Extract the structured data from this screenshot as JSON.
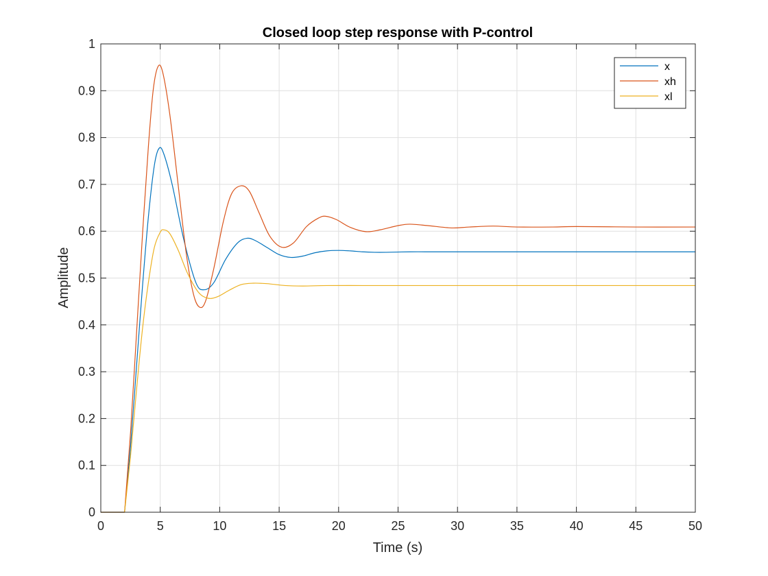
{
  "chart_data": {
    "type": "line",
    "title": "Closed loop step response with P-control",
    "xlabel": "Time (s)",
    "ylabel": "Amplitude",
    "xlim": [
      0,
      50
    ],
    "ylim": [
      0,
      1
    ],
    "xticks": [
      0,
      5,
      10,
      15,
      20,
      25,
      30,
      35,
      40,
      45,
      50
    ],
    "yticks": [
      0,
      0.1,
      0.2,
      0.3,
      0.4,
      0.5,
      0.6,
      0.7,
      0.8,
      0.9,
      1
    ],
    "grid": true,
    "legend_position": "top-right",
    "series": [
      {
        "name": "x",
        "color": "#0072BD",
        "points": [
          [
            0,
            0
          ],
          [
            2,
            0
          ],
          [
            2.5,
            0.14
          ],
          [
            3,
            0.31
          ],
          [
            3.5,
            0.48
          ],
          [
            4,
            0.63
          ],
          [
            4.5,
            0.74
          ],
          [
            4.9,
            0.777
          ],
          [
            5.3,
            0.765
          ],
          [
            6,
            0.7
          ],
          [
            7,
            0.58
          ],
          [
            8,
            0.49
          ],
          [
            8.7,
            0.475
          ],
          [
            9.5,
            0.49
          ],
          [
            10.5,
            0.54
          ],
          [
            11.5,
            0.575
          ],
          [
            12.3,
            0.585
          ],
          [
            13,
            0.58
          ],
          [
            14,
            0.565
          ],
          [
            15,
            0.55
          ],
          [
            16,
            0.544
          ],
          [
            17,
            0.547
          ],
          [
            18,
            0.554
          ],
          [
            19,
            0.558
          ],
          [
            20,
            0.559
          ],
          [
            21,
            0.558
          ],
          [
            22,
            0.556
          ],
          [
            23,
            0.555
          ],
          [
            24,
            0.555
          ],
          [
            26,
            0.556
          ],
          [
            28,
            0.556
          ],
          [
            30,
            0.556
          ],
          [
            35,
            0.556
          ],
          [
            40,
            0.556
          ],
          [
            45,
            0.556
          ],
          [
            50,
            0.556
          ]
        ]
      },
      {
        "name": "xh",
        "color": "#D95319",
        "points": [
          [
            0,
            0
          ],
          [
            2,
            0
          ],
          [
            2.5,
            0.17
          ],
          [
            3,
            0.38
          ],
          [
            3.5,
            0.59
          ],
          [
            4,
            0.78
          ],
          [
            4.4,
            0.9
          ],
          [
            4.8,
            0.951
          ],
          [
            5.2,
            0.94
          ],
          [
            5.8,
            0.85
          ],
          [
            6.5,
            0.7
          ],
          [
            7.2,
            0.55
          ],
          [
            7.8,
            0.465
          ],
          [
            8.3,
            0.438
          ],
          [
            8.8,
            0.45
          ],
          [
            9.5,
            0.52
          ],
          [
            10.3,
            0.62
          ],
          [
            11,
            0.68
          ],
          [
            11.8,
            0.697
          ],
          [
            12.5,
            0.685
          ],
          [
            13.3,
            0.64
          ],
          [
            14.2,
            0.59
          ],
          [
            15.2,
            0.566
          ],
          [
            16.2,
            0.575
          ],
          [
            17.3,
            0.61
          ],
          [
            18.3,
            0.628
          ],
          [
            18.9,
            0.632
          ],
          [
            19.8,
            0.625
          ],
          [
            21,
            0.608
          ],
          [
            22.3,
            0.599
          ],
          [
            23.5,
            0.603
          ],
          [
            25,
            0.612
          ],
          [
            26,
            0.615
          ],
          [
            27.5,
            0.612
          ],
          [
            29.5,
            0.607
          ],
          [
            31,
            0.609
          ],
          [
            33,
            0.611
          ],
          [
            35,
            0.609
          ],
          [
            38,
            0.609
          ],
          [
            40,
            0.61
          ],
          [
            45,
            0.609
          ],
          [
            50,
            0.609
          ]
        ]
      },
      {
        "name": "xl",
        "color": "#EDB120",
        "points": [
          [
            0,
            0
          ],
          [
            2,
            0
          ],
          [
            2.5,
            0.12
          ],
          [
            3,
            0.26
          ],
          [
            3.5,
            0.39
          ],
          [
            4,
            0.49
          ],
          [
            4.5,
            0.565
          ],
          [
            5,
            0.598
          ],
          [
            5.3,
            0.603
          ],
          [
            5.8,
            0.595
          ],
          [
            6.5,
            0.56
          ],
          [
            7.3,
            0.51
          ],
          [
            8.2,
            0.47
          ],
          [
            9,
            0.457
          ],
          [
            9.8,
            0.46
          ],
          [
            10.8,
            0.474
          ],
          [
            11.8,
            0.486
          ],
          [
            12.8,
            0.489
          ],
          [
            14,
            0.488
          ],
          [
            15.5,
            0.484
          ],
          [
            17,
            0.483
          ],
          [
            19,
            0.484
          ],
          [
            22,
            0.484
          ],
          [
            25,
            0.484
          ],
          [
            30,
            0.484
          ],
          [
            35,
            0.484
          ],
          [
            40,
            0.484
          ],
          [
            45,
            0.484
          ],
          [
            50,
            0.484
          ]
        ]
      }
    ]
  }
}
